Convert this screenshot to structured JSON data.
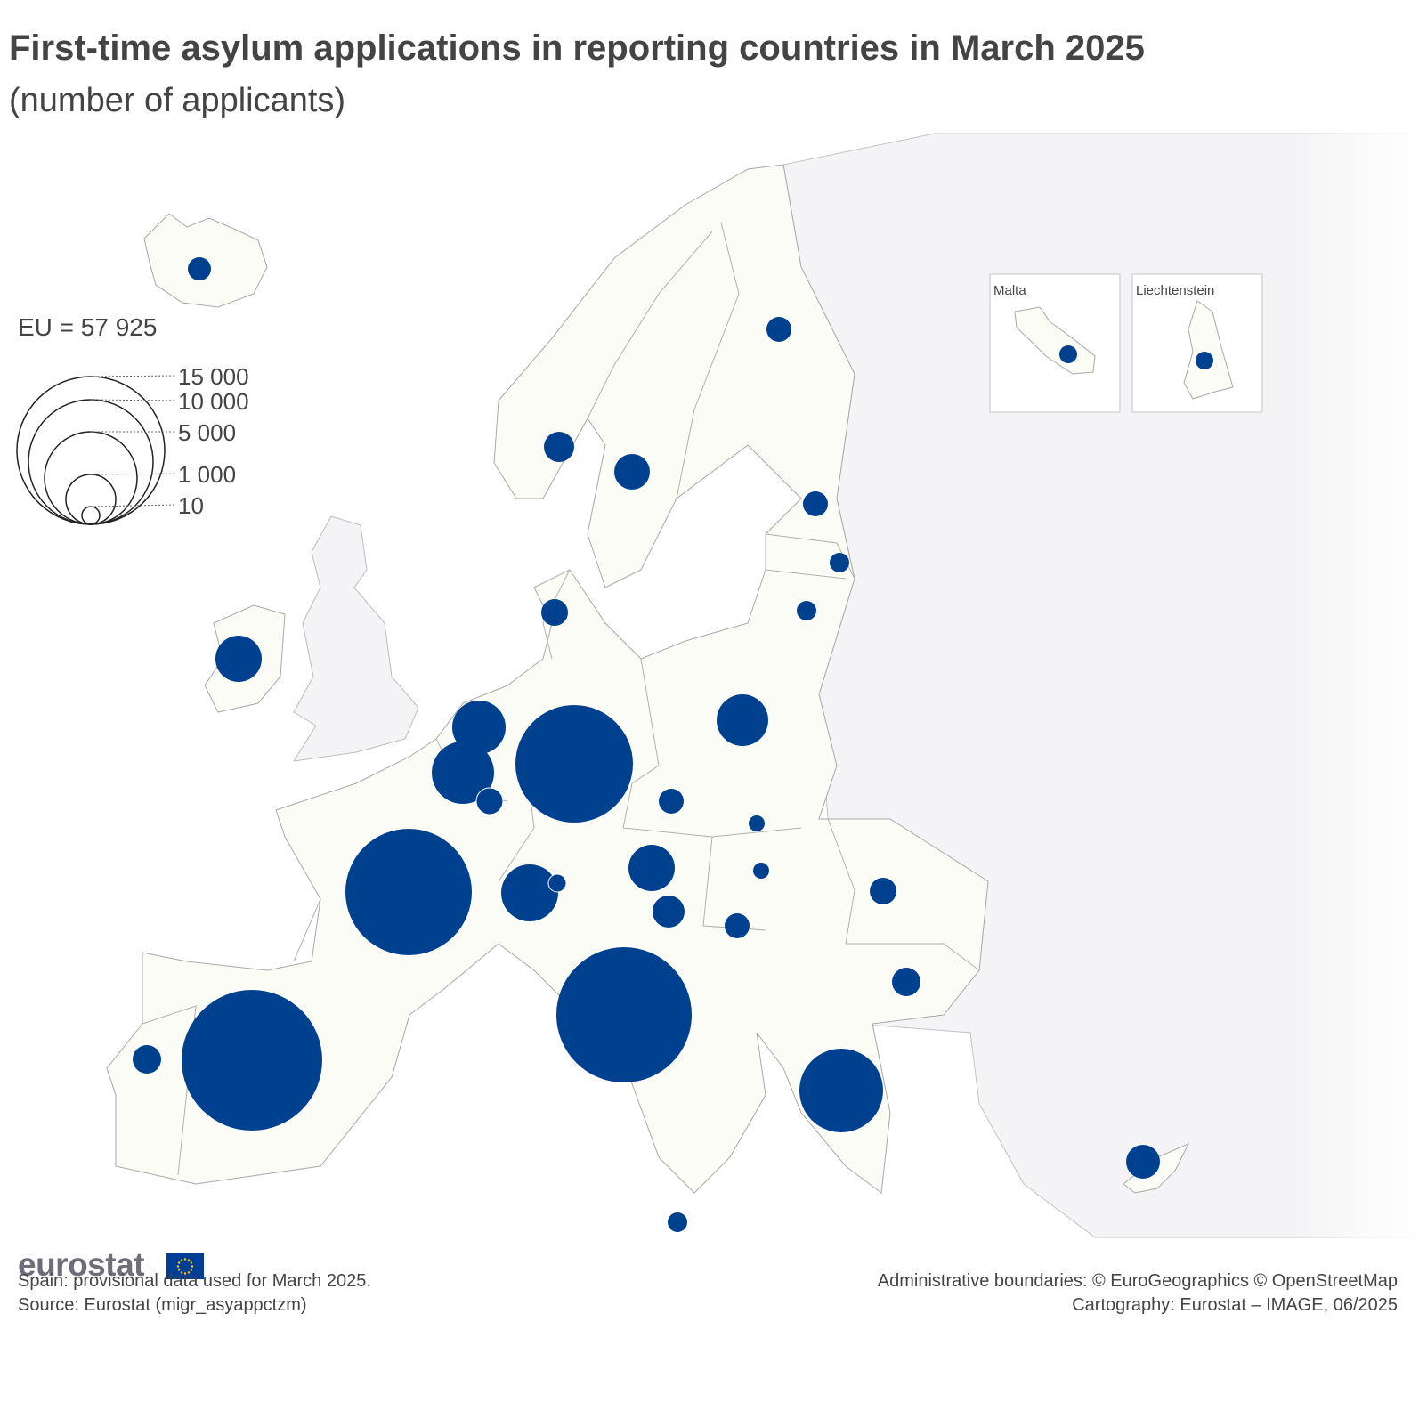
{
  "title": "First-time asylum applications in reporting countries in March 2025",
  "subtitle": "(number of applicants)",
  "eu_total": "EU = 57 925",
  "legend": {
    "labels": [
      "15 000",
      "10 000",
      "5 000",
      "1 000",
      "10"
    ]
  },
  "insets": [
    "Malta",
    "Liechtenstein"
  ],
  "logo_text": "eurostat",
  "footnotes": {
    "left": [
      "Spain: provisional data used for March 2025.",
      "Source: Eurostat (migr_asyappctzm)"
    ],
    "right": [
      "Administrative boundaries: © EuroGeographics © OpenStreetMap",
      "Cartography: Eurostat – IMAGE, 06/2025"
    ]
  },
  "colors": {
    "bubble": "#00418f",
    "reporting_land": "#fcfcf6",
    "other_land": "#f4f4f6",
    "sea": "#ffffff",
    "border": "#b8b8b8",
    "text": "#444444"
  }
}
